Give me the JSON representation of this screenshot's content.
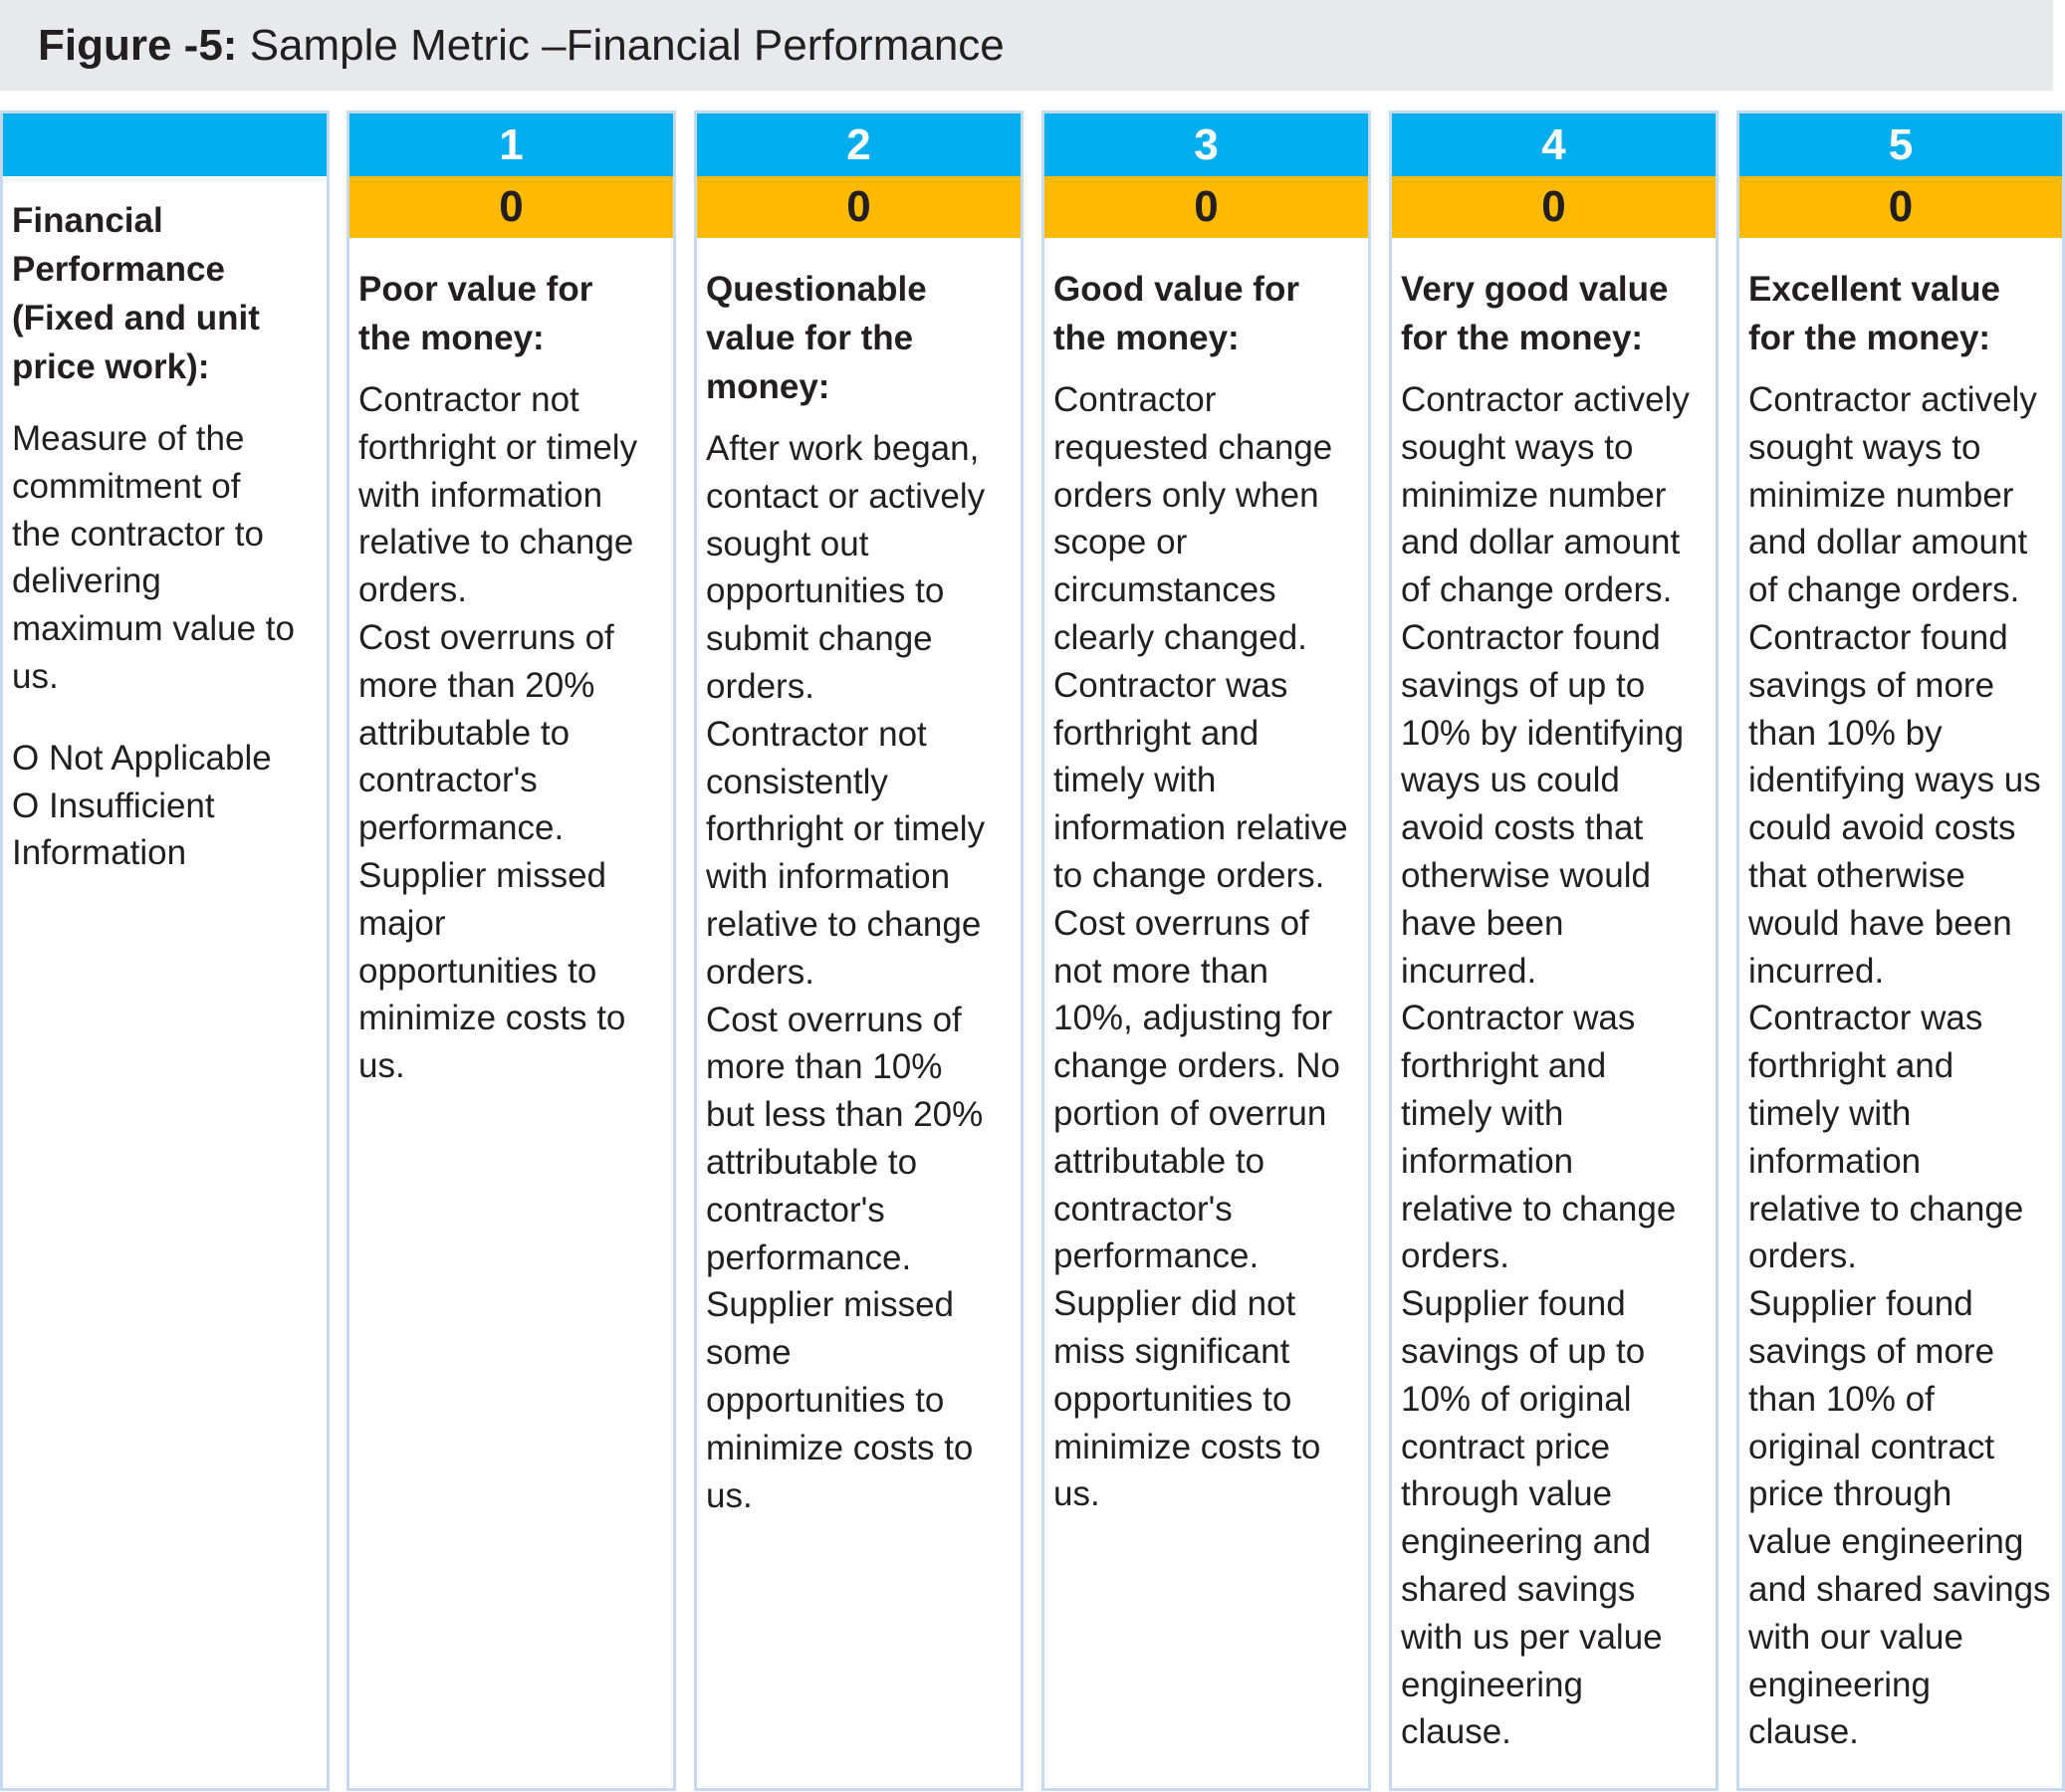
{
  "figure": {
    "label": "Figure -5:",
    "caption": "Sample Metric –Financial Performance"
  },
  "label_column": {
    "heading_lines": [
      "Financial",
      "Performance",
      "(Fixed and unit",
      "price work):"
    ],
    "description_lines": [
      "Measure of the",
      "commitment of",
      "the contractor to",
      "delivering",
      "maximum value to",
      "us."
    ],
    "options": [
      "O Not Applicable",
      "O Insufficient",
      "Information"
    ]
  },
  "columns": [
    {
      "rating": "1",
      "score": "0",
      "heading_lines": [
        "Poor value for",
        "the money:"
      ],
      "body_lines": [
        "Contractor not",
        "forthright or timely",
        "with information",
        "relative to change",
        "orders.",
        "Cost overruns of",
        "more than 20%",
        "attributable to",
        "contractor's",
        "performance.",
        "Supplier missed",
        "major",
        "opportunities to",
        "minimize costs to",
        "us."
      ]
    },
    {
      "rating": "2",
      "score": "0",
      "heading_lines": [
        "Questionable",
        "value for the",
        "money:"
      ],
      "body_lines": [
        "After work began,",
        "contact or actively",
        "sought out",
        "opportunities to",
        "submit change",
        "orders.",
        "Contractor not",
        "consistently",
        "forthright or timely",
        "with information",
        "relative to change",
        "orders.",
        "Cost overruns of",
        "more than 10%",
        "but less than 20%",
        "attributable to",
        "contractor's",
        "performance.",
        "Supplier missed",
        "some",
        "opportunities to",
        "minimize costs to",
        "us."
      ]
    },
    {
      "rating": "3",
      "score": "0",
      "heading_lines": [
        "Good value for",
        "the money:"
      ],
      "body_lines": [
        "Contractor",
        "requested change",
        "orders only when",
        "scope or",
        "circumstances",
        "clearly changed.",
        "Contractor was",
        "forthright and",
        "timely with",
        "information relative",
        "to change orders.",
        "Cost overruns of",
        "not more than",
        "10%, adjusting for",
        "change orders. No",
        "portion of overrun",
        "attributable to",
        "contractor's",
        "performance.",
        "Supplier did not",
        "miss significant",
        "opportunities to",
        "minimize costs to",
        "us."
      ]
    },
    {
      "rating": "4",
      "score": "0",
      "heading_lines": [
        "Very good value",
        "for the money:"
      ],
      "body_lines": [
        "Contractor actively",
        "sought ways to",
        "minimize number",
        "and dollar amount",
        "of change orders.",
        "Contractor found",
        "savings of up to",
        "10% by identifying",
        "ways us could",
        "avoid costs that",
        "otherwise would",
        "have been",
        "incurred.",
        "Contractor was",
        "forthright and",
        "timely with",
        "information",
        "relative to change",
        "orders.",
        "Supplier found",
        "savings of up to",
        "10% of original",
        "contract price",
        "through value",
        "engineering and",
        "shared savings",
        "with us per value",
        "engineering",
        "clause."
      ]
    },
    {
      "rating": "5",
      "score": "0",
      "heading_lines": [
        "Excellent value",
        "for the money:"
      ],
      "body_lines": [
        "Contractor actively",
        "sought ways to",
        "minimize number",
        "and dollar amount",
        "of change orders.",
        "Contractor found",
        "savings of more",
        "than 10% by",
        "identifying ways us",
        "could avoid costs",
        "that otherwise",
        "would have been",
        "incurred.",
        "Contractor was",
        "forthright and",
        "timely with",
        "information",
        "relative to change",
        "orders.",
        "Supplier found",
        "savings of more",
        "than 10% of",
        "original contract",
        "price through",
        "value engineering",
        "and shared savings",
        "with our value",
        "engineering",
        "clause."
      ]
    }
  ],
  "colors": {
    "header_band": "#e8e9ea",
    "rating_band": "#00aeef",
    "score_band": "#ffba00",
    "column_border": "#c5d9f1",
    "text": "#231f20"
  }
}
